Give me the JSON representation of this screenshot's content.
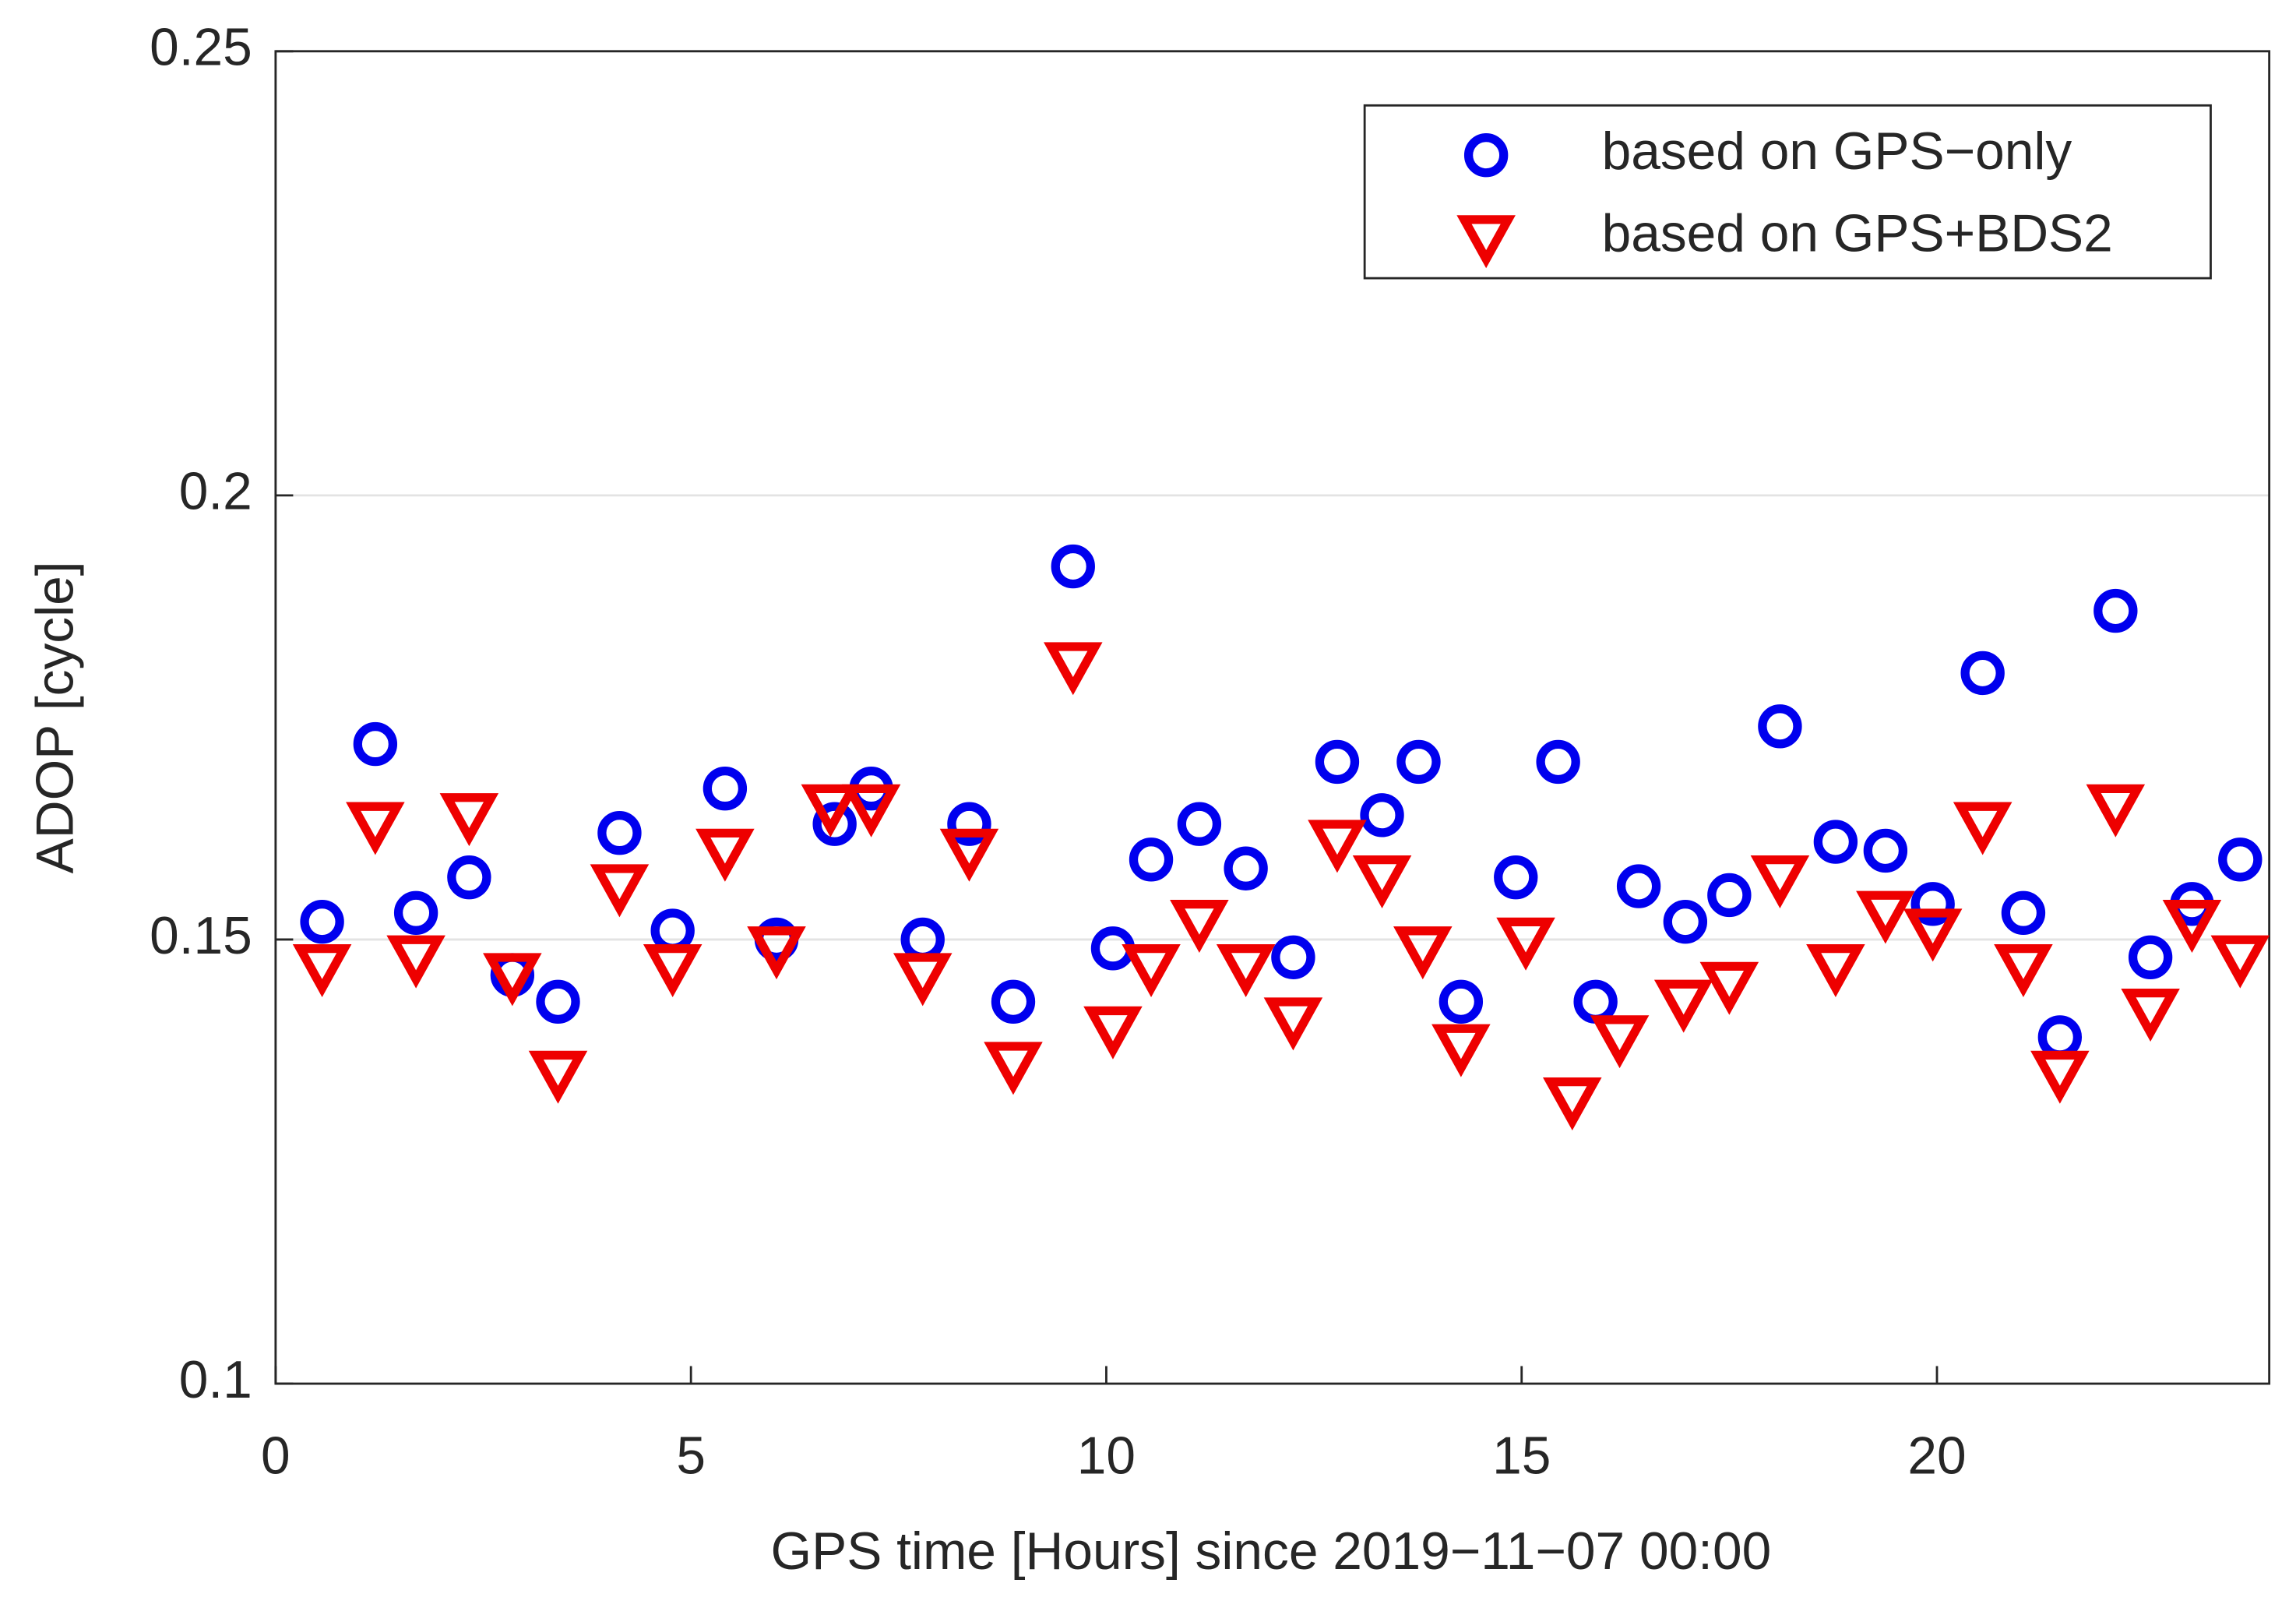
{
  "chart_data": {
    "type": "scatter",
    "xlabel": "GPS time [Hours] since 2019−11−07 00:00",
    "ylabel": "ADOP [cycle]",
    "xlim": [
      0,
      24
    ],
    "xticks": [
      0,
      5,
      10,
      15,
      20
    ],
    "ylim": [
      0.1,
      0.25
    ],
    "yticks": [
      0.1,
      0.15,
      0.2,
      0.25
    ],
    "grid": true,
    "legend": "upper right",
    "series": [
      {
        "name": "based on GPS−only",
        "color": "#0000ee",
        "marker": "circle",
        "x": [
          0.56,
          1.2,
          1.69,
          2.33,
          2.85,
          3.4,
          4.14,
          4.78,
          5.41,
          6.03,
          6.73,
          7.17,
          7.79,
          8.35,
          8.88,
          9.6,
          10.08,
          10.54,
          11.12,
          11.68,
          12.25,
          12.78,
          13.32,
          13.76,
          14.27,
          14.93,
          15.44,
          15.89,
          16.41,
          16.97,
          17.5,
          18.11,
          18.78,
          19.38,
          19.95,
          20.55,
          21.04,
          21.48,
          22.15,
          22.57,
          23.07,
          23.65
        ],
        "values": [
          0.152,
          0.172,
          0.153,
          0.157,
          0.146,
          0.143,
          0.162,
          0.151,
          0.167,
          0.15,
          0.163,
          0.167,
          0.15,
          0.163,
          0.143,
          0.192,
          0.149,
          0.159,
          0.163,
          0.158,
          0.148,
          0.17,
          0.164,
          0.17,
          0.143,
          0.157,
          0.17,
          0.143,
          0.156,
          0.152,
          0.155,
          0.174,
          0.161,
          0.16,
          0.154,
          0.18,
          0.153,
          0.139,
          0.187,
          0.148,
          0.154,
          0.159
        ]
      },
      {
        "name": "based on GPS+BDS2",
        "color": "#ee0000",
        "marker": "triangle-down",
        "x": [
          0.56,
          1.2,
          1.69,
          2.33,
          2.85,
          3.4,
          4.14,
          4.78,
          5.41,
          6.03,
          6.68,
          7.17,
          7.79,
          8.35,
          8.88,
          9.6,
          10.08,
          10.54,
          11.12,
          11.68,
          12.25,
          12.78,
          13.32,
          13.81,
          14.27,
          15.05,
          15.61,
          16.18,
          16.95,
          17.5,
          18.11,
          18.78,
          19.38,
          19.95,
          20.55,
          21.04,
          21.48,
          22.15,
          22.57,
          23.07,
          23.65
        ],
        "values": [
          0.147,
          0.163,
          0.148,
          0.164,
          0.146,
          0.135,
          0.156,
          0.147,
          0.16,
          0.149,
          0.165,
          0.165,
          0.146,
          0.16,
          0.136,
          0.181,
          0.14,
          0.147,
          0.152,
          0.147,
          0.141,
          0.161,
          0.157,
          0.149,
          0.138,
          0.15,
          0.132,
          0.139,
          0.143,
          0.145,
          0.157,
          0.147,
          0.153,
          0.151,
          0.163,
          0.147,
          0.135,
          0.165,
          0.142,
          0.152,
          0.148
        ]
      }
    ]
  }
}
